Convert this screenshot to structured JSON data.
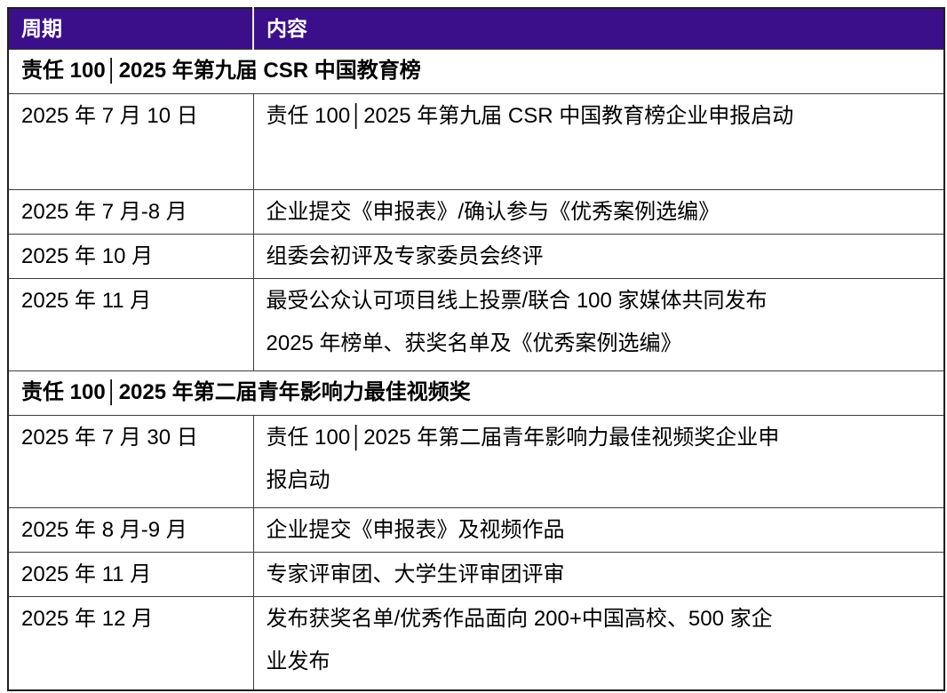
{
  "colors": {
    "header_background": "#3C0F8A",
    "header_text": "#FFFFFF",
    "grid_border": "#3D3D3D",
    "outer_border": "#1F1F1F",
    "body_text": "#000000",
    "row_background": "#FFFFFF"
  },
  "table": {
    "column_headers": {
      "period": "周期",
      "content": "内容"
    },
    "sections": [
      {
        "title": "责任 100│2025 年第九届 CSR 中国教育榜",
        "rows": [
          {
            "period": "2025 年 7 月 10 日",
            "content": "责任 100│2025 年第九届 CSR 中国教育榜企业申报启动"
          },
          {
            "period": "2025 年 7 月-8 月",
            "content": "企业提交《申报表》/确认参与《优秀案例选编》"
          },
          {
            "period": "2025 年 10 月",
            "content": "组委会初评及专家委员会终评"
          },
          {
            "period": "2025 年 11 月",
            "content": "最受公众认可项目线上投票/联合 100 家媒体共同发布\n2025 年榜单、获奖名单及《优秀案例选编》"
          }
        ]
      },
      {
        "title": "责任 100│2025 年第二届青年影响力最佳视频奖",
        "rows": [
          {
            "period": "2025 年 7 月 30 日",
            "content": "责任 100│2025 年第二届青年影响力最佳视频奖企业申\n报启动"
          },
          {
            "period": "2025 年 8 月-9 月",
            "content": "企业提交《申报表》及视频作品"
          },
          {
            "period": "2025 年 11 月",
            "content": "专家评审团、大学生评审团评审"
          },
          {
            "period": "2025 年 12 月",
            "content": "发布获奖名单/优秀作品面向 200+中国高校、500 家企\n业发布"
          }
        ]
      }
    ]
  }
}
